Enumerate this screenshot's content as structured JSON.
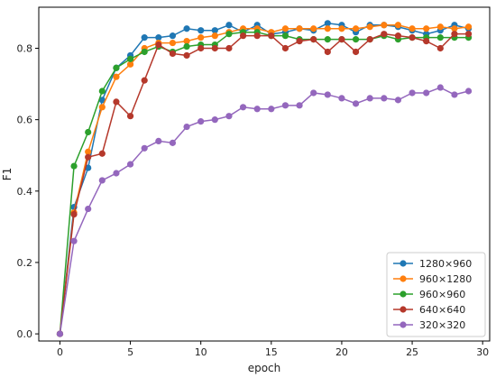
{
  "chart_data": {
    "type": "line",
    "title": "",
    "xlabel": "epoch",
    "ylabel": "F1",
    "xlim": [
      -1.5,
      30.5
    ],
    "ylim": [
      -0.02,
      0.915
    ],
    "xticks": [
      0,
      5,
      10,
      15,
      20,
      25,
      30
    ],
    "yticks": [
      0.0,
      0.2,
      0.4,
      0.6,
      0.8
    ],
    "ytick_labels": [
      "0.0",
      "0.2",
      "0.4",
      "0.6",
      "0.8"
    ],
    "grid": false,
    "legend_position": "bottom-right",
    "x": [
      0,
      1,
      2,
      3,
      4,
      5,
      6,
      7,
      8,
      9,
      10,
      11,
      12,
      13,
      14,
      15,
      16,
      17,
      18,
      19,
      20,
      21,
      22,
      23,
      24,
      25,
      26,
      27,
      28,
      29
    ],
    "series": [
      {
        "name": "1280×960",
        "color": "#1f77b4",
        "values": [
          0.0,
          0.355,
          0.465,
          0.655,
          0.745,
          0.78,
          0.83,
          0.83,
          0.835,
          0.855,
          0.85,
          0.85,
          0.865,
          0.845,
          0.865,
          0.84,
          0.845,
          0.855,
          0.85,
          0.87,
          0.865,
          0.845,
          0.865,
          0.865,
          0.86,
          0.85,
          0.84,
          0.85,
          0.865,
          0.855
        ]
      },
      {
        "name": "960×1280",
        "color": "#ff7f0e",
        "values": [
          0.0,
          0.34,
          0.51,
          0.635,
          0.72,
          0.755,
          0.8,
          0.815,
          0.815,
          0.82,
          0.83,
          0.835,
          0.845,
          0.855,
          0.855,
          0.845,
          0.855,
          0.855,
          0.855,
          0.855,
          0.855,
          0.855,
          0.86,
          0.865,
          0.865,
          0.855,
          0.855,
          0.86,
          0.855,
          0.86
        ]
      },
      {
        "name": "960×960",
        "color": "#2ca02c",
        "values": [
          0.0,
          0.47,
          0.565,
          0.68,
          0.745,
          0.77,
          0.79,
          0.805,
          0.79,
          0.805,
          0.81,
          0.81,
          0.84,
          0.845,
          0.845,
          0.835,
          0.835,
          0.825,
          0.825,
          0.825,
          0.825,
          0.825,
          0.825,
          0.835,
          0.825,
          0.83,
          0.83,
          0.83,
          0.83,
          0.83
        ]
      },
      {
        "name": "640×640",
        "color": "#b5382b",
        "values": [
          0.0,
          0.335,
          0.495,
          0.505,
          0.65,
          0.61,
          0.71,
          0.81,
          0.785,
          0.78,
          0.8,
          0.8,
          0.8,
          0.835,
          0.835,
          0.835,
          0.8,
          0.82,
          0.825,
          0.79,
          0.825,
          0.79,
          0.825,
          0.84,
          0.835,
          0.83,
          0.82,
          0.8,
          0.84,
          0.84
        ]
      },
      {
        "name": "320×320",
        "color": "#9467bd",
        "values": [
          0.0,
          0.26,
          0.35,
          0.43,
          0.45,
          0.475,
          0.52,
          0.54,
          0.535,
          0.58,
          0.595,
          0.6,
          0.61,
          0.635,
          0.63,
          0.63,
          0.64,
          0.64,
          0.675,
          0.67,
          0.66,
          0.645,
          0.66,
          0.66,
          0.655,
          0.675,
          0.675,
          0.69,
          0.67,
          0.68
        ]
      }
    ]
  }
}
